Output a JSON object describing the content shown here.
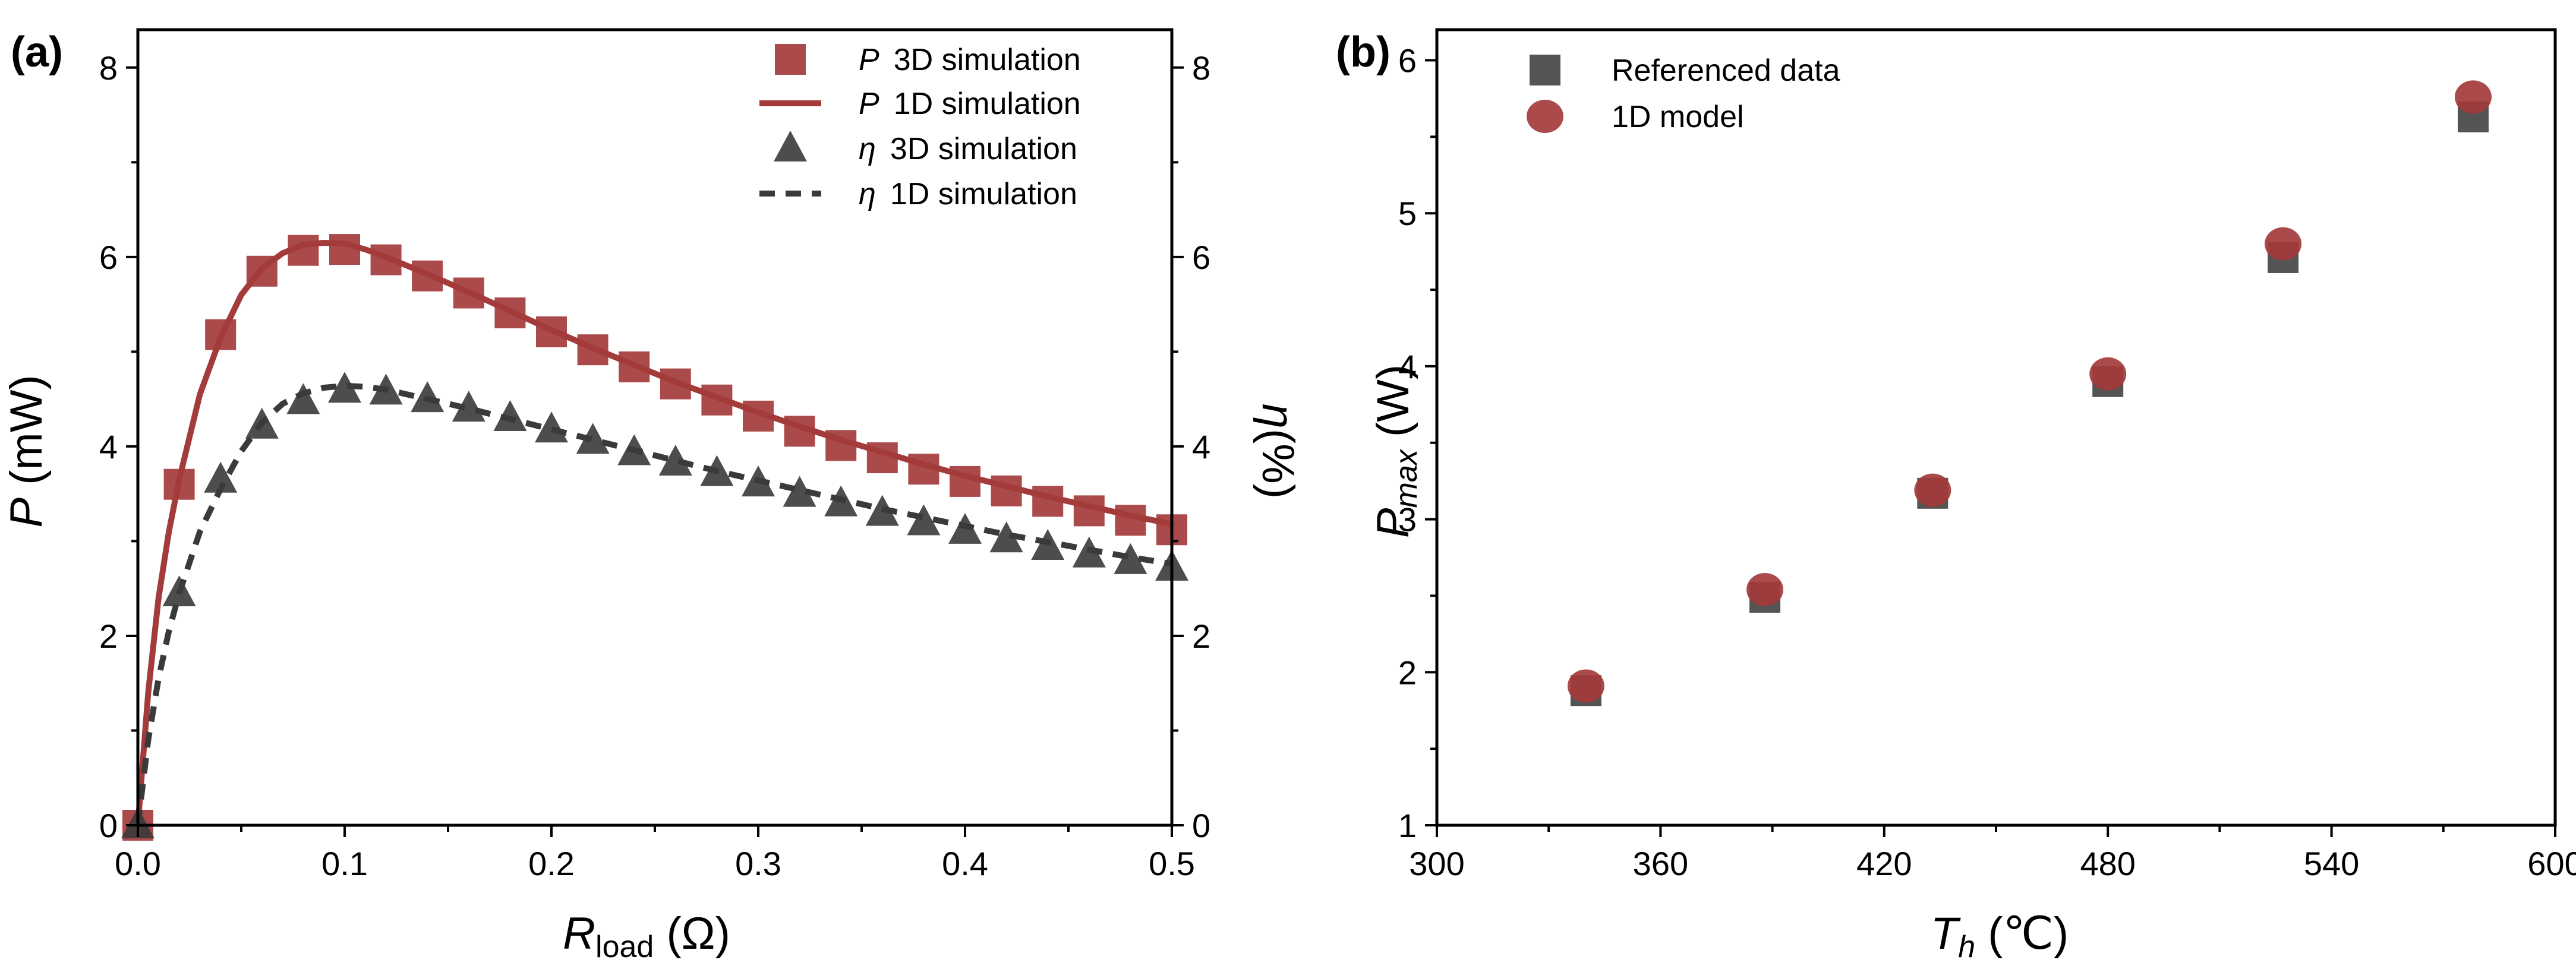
{
  "chart_data": [
    {
      "panel": "(a)",
      "type": "scatter",
      "xlabel_main": "R",
      "xlabel_sub": "load",
      "xlabel_unit": " (Ω)",
      "ylabel_left_symbol": "P",
      "ylabel_left_unit": " (mW)",
      "ylabel_right_symbol": "η",
      "ylabel_right_unit": "(%)",
      "xlim": [
        0.0,
        0.5
      ],
      "ylim_left": [
        0,
        8.4
      ],
      "ylim_right": [
        0,
        8.4
      ],
      "x_ticks": [
        "0.0",
        "0.1",
        "0.2",
        "0.3",
        "0.4",
        "0.5"
      ],
      "x_tick_values": [
        0.0,
        0.1,
        0.2,
        0.3,
        0.4,
        0.5
      ],
      "y_ticks_left": [
        "0",
        "2",
        "4",
        "6",
        "8"
      ],
      "y_ticks_right": [
        "0",
        "2",
        "4",
        "6",
        "8"
      ],
      "y_tick_values": [
        0,
        2,
        4,
        6,
        8
      ],
      "legend_position": "top-right",
      "series": [
        {
          "name": "3D simulation",
          "symbol": "P",
          "kind": "markers-square",
          "axis": "left",
          "color": "#a43b3b",
          "x": [
            0.0,
            0.02,
            0.04,
            0.06,
            0.08,
            0.1,
            0.12,
            0.14,
            0.16,
            0.18,
            0.2,
            0.22,
            0.24,
            0.26,
            0.28,
            0.3,
            0.32,
            0.34,
            0.36,
            0.38,
            0.4,
            0.42,
            0.44,
            0.46,
            0.48,
            0.5
          ],
          "y": [
            0.0,
            3.6,
            5.18,
            5.85,
            6.07,
            6.08,
            5.97,
            5.8,
            5.62,
            5.41,
            5.21,
            5.02,
            4.84,
            4.66,
            4.49,
            4.32,
            4.16,
            4.01,
            3.88,
            3.76,
            3.63,
            3.53,
            3.42,
            3.32,
            3.22,
            3.12
          ]
        },
        {
          "name": "1D simulation",
          "symbol": "P",
          "kind": "line-solid",
          "axis": "left",
          "color": "#a43b3b",
          "x": [
            0.0,
            0.005,
            0.01,
            0.015,
            0.02,
            0.03,
            0.04,
            0.05,
            0.06,
            0.07,
            0.08,
            0.09,
            0.1,
            0.11,
            0.12,
            0.14,
            0.16,
            0.18,
            0.2,
            0.22,
            0.24,
            0.26,
            0.28,
            0.3,
            0.32,
            0.34,
            0.36,
            0.38,
            0.4,
            0.42,
            0.44,
            0.46,
            0.48,
            0.5
          ],
          "y": [
            0.0,
            1.4,
            2.4,
            3.1,
            3.65,
            4.55,
            5.15,
            5.6,
            5.88,
            6.04,
            6.13,
            6.15,
            6.14,
            6.08,
            6.0,
            5.82,
            5.63,
            5.43,
            5.23,
            5.04,
            4.86,
            4.68,
            4.52,
            4.36,
            4.21,
            4.07,
            3.94,
            3.81,
            3.69,
            3.58,
            3.47,
            3.37,
            3.27,
            3.18
          ]
        },
        {
          "name": "3D simulation",
          "symbol": "η",
          "kind": "markers-triangle",
          "axis": "right",
          "color": "#3a3a3a",
          "x": [
            0.0,
            0.02,
            0.04,
            0.06,
            0.08,
            0.1,
            0.12,
            0.14,
            0.16,
            0.18,
            0.2,
            0.22,
            0.24,
            0.26,
            0.28,
            0.3,
            0.32,
            0.34,
            0.36,
            0.38,
            0.4,
            0.42,
            0.44,
            0.46,
            0.48,
            0.5
          ],
          "y": [
            0.0,
            2.45,
            3.65,
            4.22,
            4.48,
            4.6,
            4.58,
            4.5,
            4.4,
            4.3,
            4.18,
            4.06,
            3.94,
            3.83,
            3.72,
            3.61,
            3.5,
            3.4,
            3.3,
            3.2,
            3.11,
            3.02,
            2.94,
            2.86,
            2.79,
            2.72
          ]
        },
        {
          "name": "1D simulation",
          "symbol": "η",
          "kind": "line-dashed",
          "axis": "right",
          "color": "#3a3a3a",
          "x": [
            0.0,
            0.005,
            0.01,
            0.015,
            0.02,
            0.03,
            0.04,
            0.05,
            0.06,
            0.07,
            0.08,
            0.09,
            0.1,
            0.11,
            0.12,
            0.14,
            0.16,
            0.18,
            0.2,
            0.22,
            0.24,
            0.26,
            0.28,
            0.3,
            0.32,
            0.34,
            0.36,
            0.38,
            0.4,
            0.42,
            0.44,
            0.46,
            0.48,
            0.5
          ],
          "y": [
            0.0,
            0.9,
            1.55,
            2.05,
            2.45,
            3.1,
            3.55,
            3.95,
            4.25,
            4.45,
            4.56,
            4.62,
            4.64,
            4.63,
            4.6,
            4.5,
            4.4,
            4.29,
            4.18,
            4.07,
            3.96,
            3.85,
            3.74,
            3.64,
            3.54,
            3.44,
            3.34,
            3.25,
            3.16,
            3.07,
            2.99,
            2.91,
            2.83,
            2.76
          ]
        }
      ]
    },
    {
      "panel": "(b)",
      "type": "scatter",
      "xlabel_main": "T",
      "xlabel_sub": "h",
      "xlabel_unit": " (℃)",
      "ylabel_main": "P",
      "ylabel_sub": "max",
      "ylabel_unit": " (W)",
      "xlim": [
        300,
        600
      ],
      "ylim": [
        1,
        6.2
      ],
      "x_ticks": [
        "300",
        "360",
        "420",
        "480",
        "540",
        "600"
      ],
      "x_tick_values": [
        300,
        360,
        420,
        480,
        540,
        600
      ],
      "y_ticks": [
        "1",
        "2",
        "3",
        "4",
        "5",
        "6"
      ],
      "y_tick_values": [
        1,
        2,
        3,
        4,
        5,
        6
      ],
      "legend_position": "top-left",
      "series": [
        {
          "name": "Referenced data",
          "kind": "markers-square",
          "color": "#454545",
          "x": [
            340,
            388,
            433,
            480,
            527,
            578
          ],
          "y": [
            1.88,
            2.49,
            3.17,
            3.9,
            4.71,
            5.63
          ]
        },
        {
          "name": "1D model",
          "kind": "markers-circle",
          "color": "#a43b3b",
          "x": [
            340,
            388,
            433,
            480,
            527,
            578
          ],
          "y": [
            1.91,
            2.54,
            3.19,
            3.95,
            4.8,
            5.76
          ]
        }
      ]
    }
  ]
}
